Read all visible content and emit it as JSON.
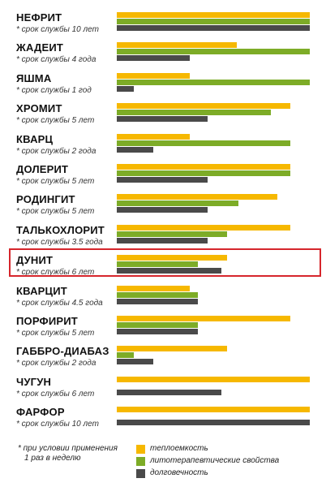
{
  "chart_data": {
    "type": "bar",
    "orientation": "horizontal",
    "scale_max": 10,
    "categories": [
      {
        "name": "НЕФРИТ",
        "life": "* срок службы 10 лет",
        "values": [
          10,
          10,
          10
        ]
      },
      {
        "name": "ЖАДЕИТ",
        "life": "* срок службы 4 года",
        "values": [
          6.2,
          10,
          3.8
        ]
      },
      {
        "name": "ЯШМА",
        "life": "* срок службы 1 год",
        "values": [
          3.8,
          10,
          0.9
        ]
      },
      {
        "name": "ХРОМИТ",
        "life": "* срок службы   5 лет",
        "values": [
          9,
          8,
          4.7
        ]
      },
      {
        "name": "КВАРЦ",
        "life": "* срок службы   2 года",
        "values": [
          3.8,
          9,
          1.9
        ]
      },
      {
        "name": "ДОЛЕРИТ",
        "life": "* срок службы 5 лет",
        "values": [
          9,
          9,
          4.7
        ]
      },
      {
        "name": "РОДИНГИТ",
        "life": "* срок службы 5 лет",
        "values": [
          8.3,
          6.3,
          4.7
        ]
      },
      {
        "name": "ТАЛЬКОХЛОРИТ",
        "life": "* срок службы   3.5 года",
        "values": [
          9,
          5.7,
          4.7
        ]
      },
      {
        "name": "ДУНИТ",
        "life": "* срок службы 6 лет",
        "values": [
          5.7,
          4.2,
          5.4
        ]
      },
      {
        "name": "КВАРЦИТ",
        "life": "* срок службы 4.5 года",
        "values": [
          3.8,
          4.2,
          4.2
        ]
      },
      {
        "name": "ПОРФИРИТ",
        "life": "* срок службы 5 лет",
        "values": [
          9,
          4.2,
          4.2
        ]
      },
      {
        "name": "ГАББРО-ДИАБАЗ",
        "life": "* срок службы   2 года",
        "values": [
          5.7,
          0.9,
          1.9
        ]
      },
      {
        "name": "ЧУГУН",
        "life": "* срок службы   6 лет",
        "values": [
          10,
          0,
          5.4
        ]
      },
      {
        "name": "ФАРФОР",
        "life": "* срок службы 10 лет",
        "values": [
          10,
          0,
          10
        ]
      }
    ],
    "series": [
      {
        "name": "теплоемкость",
        "color": "#f6b800"
      },
      {
        "name": "литотерапевтические свойства",
        "color": "#7dac27"
      },
      {
        "name": "долговечность",
        "color": "#4a4a4a"
      }
    ],
    "highlighted": "ДУНИТ",
    "highlight_color": "#d6262c"
  },
  "footnote": [
    "*  при условии применения",
    "1 раз в неделю"
  ]
}
